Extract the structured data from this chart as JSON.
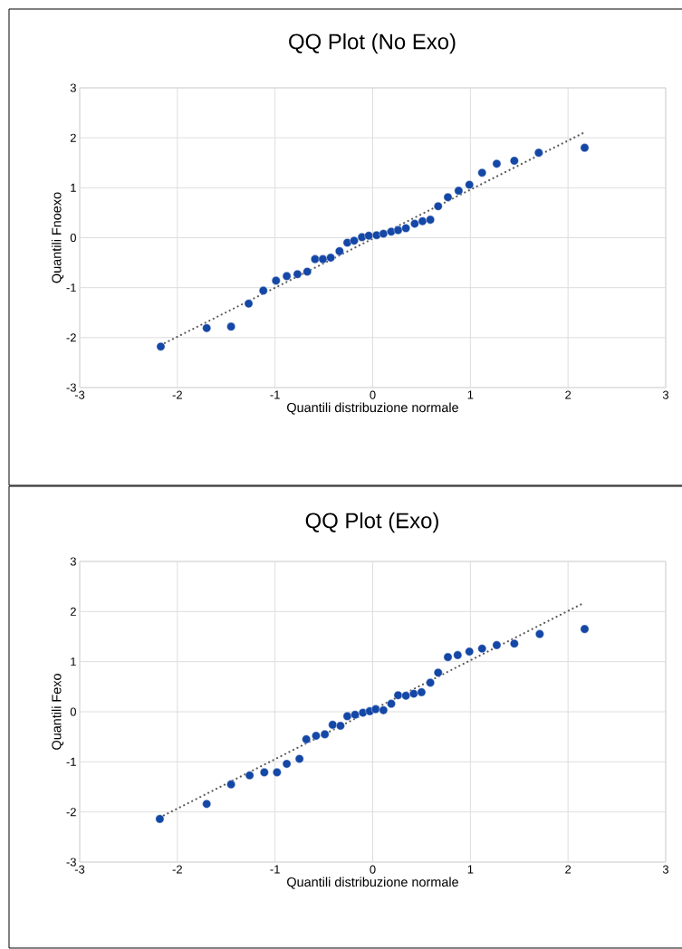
{
  "chart_data": [
    {
      "type": "scatter",
      "title": "QQ Plot (No Exo)",
      "xlabel": "Quantili distribuzione normale",
      "ylabel": "Quantili Fnoexo",
      "xlim": [
        -3,
        3
      ],
      "ylim": [
        -3,
        3
      ],
      "xticks": [
        -3,
        -2,
        -1,
        0,
        1,
        2,
        3
      ],
      "yticks": [
        -3,
        -2,
        -1,
        0,
        1,
        2,
        3
      ],
      "grid": true,
      "series": [
        {
          "type": "scatter",
          "color": "#1447a6",
          "marker": "circle",
          "x": [
            -2.17,
            -1.7,
            -1.45,
            -1.27,
            -1.12,
            -0.99,
            -0.88,
            -0.77,
            -0.67,
            -0.59,
            -0.51,
            -0.43,
            -0.34,
            -0.26,
            -0.19,
            -0.11,
            -0.04,
            0.04,
            0.11,
            0.19,
            0.26,
            0.34,
            0.43,
            0.51,
            0.59,
            0.67,
            0.77,
            0.88,
            0.99,
            1.12,
            1.27,
            1.45,
            1.7,
            2.17
          ],
          "values": [
            -2.18,
            -1.81,
            -1.78,
            -1.32,
            -1.06,
            -0.86,
            -0.77,
            -0.73,
            -0.68,
            -0.43,
            -0.43,
            -0.4,
            -0.27,
            -0.1,
            -0.06,
            0.01,
            0.04,
            0.05,
            0.08,
            0.12,
            0.15,
            0.19,
            0.28,
            0.33,
            0.36,
            0.63,
            0.81,
            0.94,
            1.06,
            1.3,
            1.48,
            1.54,
            1.7,
            1.8
          ]
        },
        {
          "type": "line",
          "color": "#595959",
          "marker": "none",
          "line_style": "dotted",
          "x": [
            -2.17,
            2.17
          ],
          "values": [
            -2.15,
            2.11
          ]
        }
      ]
    },
    {
      "type": "scatter",
      "title": "QQ Plot (Exo)",
      "xlabel": "Quantili distribuzione normale",
      "ylabel": "Quantili Fexo",
      "xlim": [
        -3,
        3
      ],
      "ylim": [
        -3,
        3
      ],
      "xticks": [
        -3,
        -2,
        -1,
        0,
        1,
        2,
        3
      ],
      "yticks": [
        -3,
        -2,
        -1,
        0,
        1,
        2,
        3
      ],
      "grid": true,
      "series": [
        {
          "type": "scatter",
          "color": "#1447a6",
          "marker": "circle",
          "x": [
            -2.18,
            -1.7,
            -1.45,
            -1.26,
            -1.11,
            -0.98,
            -0.88,
            -0.75,
            -0.68,
            -0.58,
            -0.49,
            -0.41,
            -0.33,
            -0.26,
            -0.18,
            -0.1,
            -0.03,
            0.03,
            0.11,
            0.19,
            0.26,
            0.34,
            0.42,
            0.5,
            0.59,
            0.67,
            0.77,
            0.87,
            0.99,
            1.12,
            1.27,
            1.45,
            1.71,
            2.17
          ],
          "values": [
            -2.14,
            -1.84,
            -1.45,
            -1.27,
            -1.21,
            -1.21,
            -1.04,
            -0.94,
            -0.55,
            -0.48,
            -0.45,
            -0.26,
            -0.28,
            -0.09,
            -0.06,
            -0.02,
            0.01,
            0.05,
            0.03,
            0.16,
            0.33,
            0.32,
            0.36,
            0.39,
            0.58,
            0.78,
            1.09,
            1.13,
            1.2,
            1.26,
            1.33,
            1.36,
            1.55,
            1.65
          ]
        },
        {
          "type": "line",
          "color": "#595959",
          "marker": "none",
          "line_style": "dotted",
          "x": [
            -2.18,
            2.16
          ],
          "values": [
            -2.11,
            2.17
          ]
        }
      ]
    }
  ]
}
